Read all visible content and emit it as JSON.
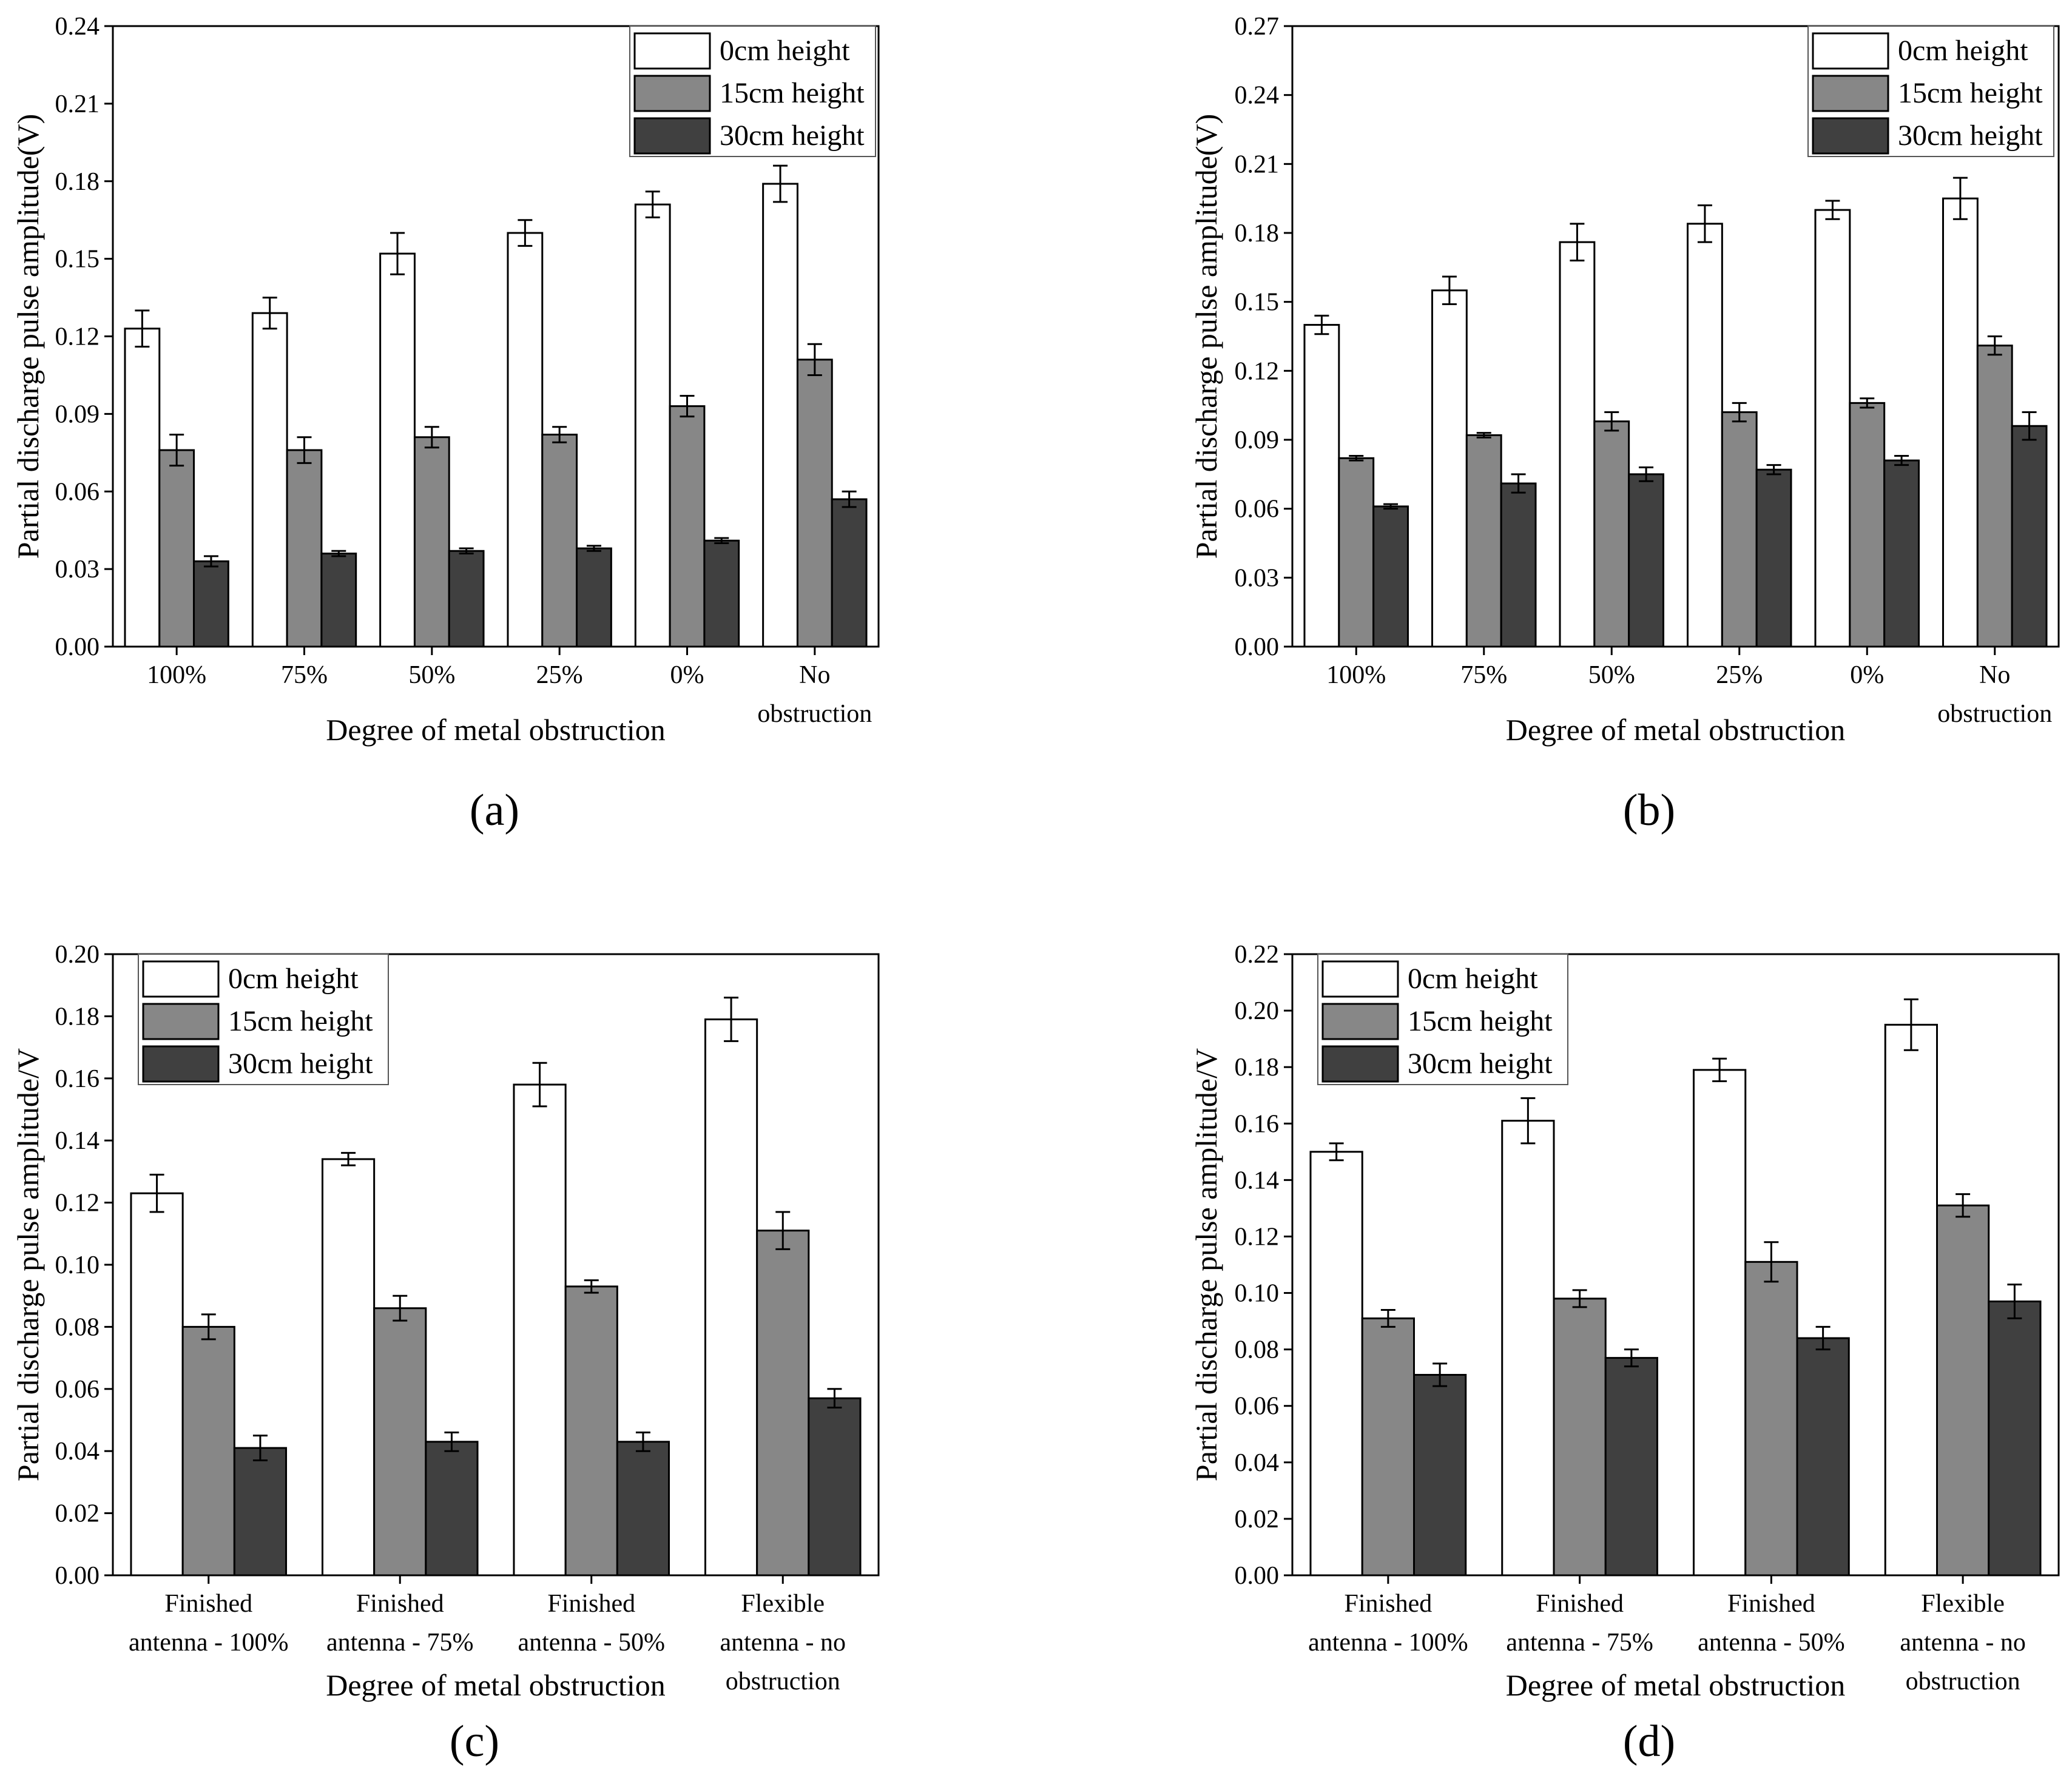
{
  "legend": {
    "series_names": [
      "0cm height",
      "15cm height",
      "30cm height"
    ]
  },
  "colors": {
    "s0": "#ffffff",
    "s1": "#878787",
    "s2": "#404040",
    "stroke": "#000000"
  },
  "chart_data": [
    {
      "panel_label": "(a)",
      "type": "bar",
      "title": "",
      "xlabel": "Degree of metal obstruction",
      "ylabel": "Partial discharge pulse amplitude(V)",
      "ylim": [
        0,
        0.24
      ],
      "yticks": [
        "0.00",
        "0.03",
        "0.06",
        "0.09",
        "0.12",
        "0.15",
        "0.18",
        "0.21",
        "0.24"
      ],
      "categories": [
        [
          "100%"
        ],
        [
          "75%"
        ],
        [
          "50%"
        ],
        [
          "25%"
        ],
        [
          "0%"
        ],
        [
          "No",
          "obstruction"
        ]
      ],
      "series": [
        {
          "name": "0cm height",
          "values": [
            0.123,
            0.129,
            0.152,
            0.16,
            0.171,
            0.179
          ],
          "errors": [
            0.007,
            0.006,
            0.008,
            0.005,
            0.005,
            0.007
          ]
        },
        {
          "name": "15cm height",
          "values": [
            0.076,
            0.076,
            0.081,
            0.082,
            0.093,
            0.111
          ],
          "errors": [
            0.006,
            0.005,
            0.004,
            0.003,
            0.004,
            0.006
          ]
        },
        {
          "name": "30cm height",
          "values": [
            0.033,
            0.036,
            0.037,
            0.038,
            0.041,
            0.057
          ],
          "errors": [
            0.002,
            0.001,
            0.001,
            0.001,
            0.001,
            0.003
          ]
        }
      ],
      "legend_position": "top-right"
    },
    {
      "panel_label": "(b)",
      "type": "bar",
      "title": "",
      "xlabel": "Degree of metal obstruction",
      "ylabel": "Partial discharge pulse amplitude(V)",
      "ylim": [
        0,
        0.27
      ],
      "yticks": [
        "0.00",
        "0.03",
        "0.06",
        "0.09",
        "0.12",
        "0.15",
        "0.18",
        "0.21",
        "0.24",
        "0.27"
      ],
      "categories": [
        [
          "100%"
        ],
        [
          "75%"
        ],
        [
          "50%"
        ],
        [
          "25%"
        ],
        [
          "0%"
        ],
        [
          "No",
          "obstruction"
        ]
      ],
      "series": [
        {
          "name": "0cm height",
          "values": [
            0.14,
            0.155,
            0.176,
            0.184,
            0.19,
            0.195
          ],
          "errors": [
            0.004,
            0.006,
            0.008,
            0.008,
            0.004,
            0.009
          ]
        },
        {
          "name": "15cm height",
          "values": [
            0.082,
            0.092,
            0.098,
            0.102,
            0.106,
            0.131
          ],
          "errors": [
            0.001,
            0.001,
            0.004,
            0.004,
            0.002,
            0.004
          ]
        },
        {
          "name": "30cm height",
          "values": [
            0.061,
            0.071,
            0.075,
            0.077,
            0.081,
            0.096
          ],
          "errors": [
            0.001,
            0.004,
            0.003,
            0.002,
            0.002,
            0.006
          ]
        }
      ],
      "legend_position": "top-right"
    },
    {
      "panel_label": "(c)",
      "type": "bar",
      "title": "",
      "xlabel": "Degree of metal obstruction",
      "ylabel": "Partial discharge pulse amplitude/V",
      "ylim": [
        0,
        0.2
      ],
      "yticks": [
        "0.00",
        "0.02",
        "0.04",
        "0.06",
        "0.08",
        "0.10",
        "0.12",
        "0.14",
        "0.16",
        "0.18",
        "0.20"
      ],
      "categories": [
        [
          "Finished",
          "antenna - 100%"
        ],
        [
          "Finished",
          "antenna - 75%"
        ],
        [
          "Finished",
          "antenna - 50%"
        ],
        [
          "Flexible",
          "antenna - no",
          "obstruction"
        ]
      ],
      "series": [
        {
          "name": "0cm height",
          "values": [
            0.123,
            0.134,
            0.158,
            0.179
          ],
          "errors": [
            0.006,
            0.002,
            0.007,
            0.007
          ]
        },
        {
          "name": "15cm height",
          "values": [
            0.08,
            0.086,
            0.093,
            0.111
          ],
          "errors": [
            0.004,
            0.004,
            0.002,
            0.006
          ]
        },
        {
          "name": "30cm height",
          "values": [
            0.041,
            0.043,
            0.043,
            0.057
          ],
          "errors": [
            0.004,
            0.003,
            0.003,
            0.003
          ]
        }
      ],
      "legend_position": "top-left"
    },
    {
      "panel_label": "(d)",
      "type": "bar",
      "title": "",
      "xlabel": "Degree of metal obstruction",
      "ylabel": "Partial discharge pulse amplitude/V",
      "ylim": [
        0,
        0.22
      ],
      "yticks": [
        "0.00",
        "0.02",
        "0.04",
        "0.06",
        "0.08",
        "0.10",
        "0.12",
        "0.14",
        "0.16",
        "0.18",
        "0.20",
        "0.22"
      ],
      "categories": [
        [
          "Finished",
          "antenna - 100%"
        ],
        [
          "Finished",
          "antenna - 75%"
        ],
        [
          "Finished",
          "antenna - 50%"
        ],
        [
          "Flexible",
          "antenna - no",
          "obstruction"
        ]
      ],
      "series": [
        {
          "name": "0cm height",
          "values": [
            0.15,
            0.161,
            0.179,
            0.195
          ],
          "errors": [
            0.003,
            0.008,
            0.004,
            0.009
          ]
        },
        {
          "name": "15cm height",
          "values": [
            0.091,
            0.098,
            0.111,
            0.131
          ],
          "errors": [
            0.003,
            0.003,
            0.007,
            0.004
          ]
        },
        {
          "name": "30cm height",
          "values": [
            0.071,
            0.077,
            0.084,
            0.097
          ],
          "errors": [
            0.004,
            0.003,
            0.004,
            0.006
          ]
        }
      ],
      "legend_position": "top-left"
    }
  ]
}
